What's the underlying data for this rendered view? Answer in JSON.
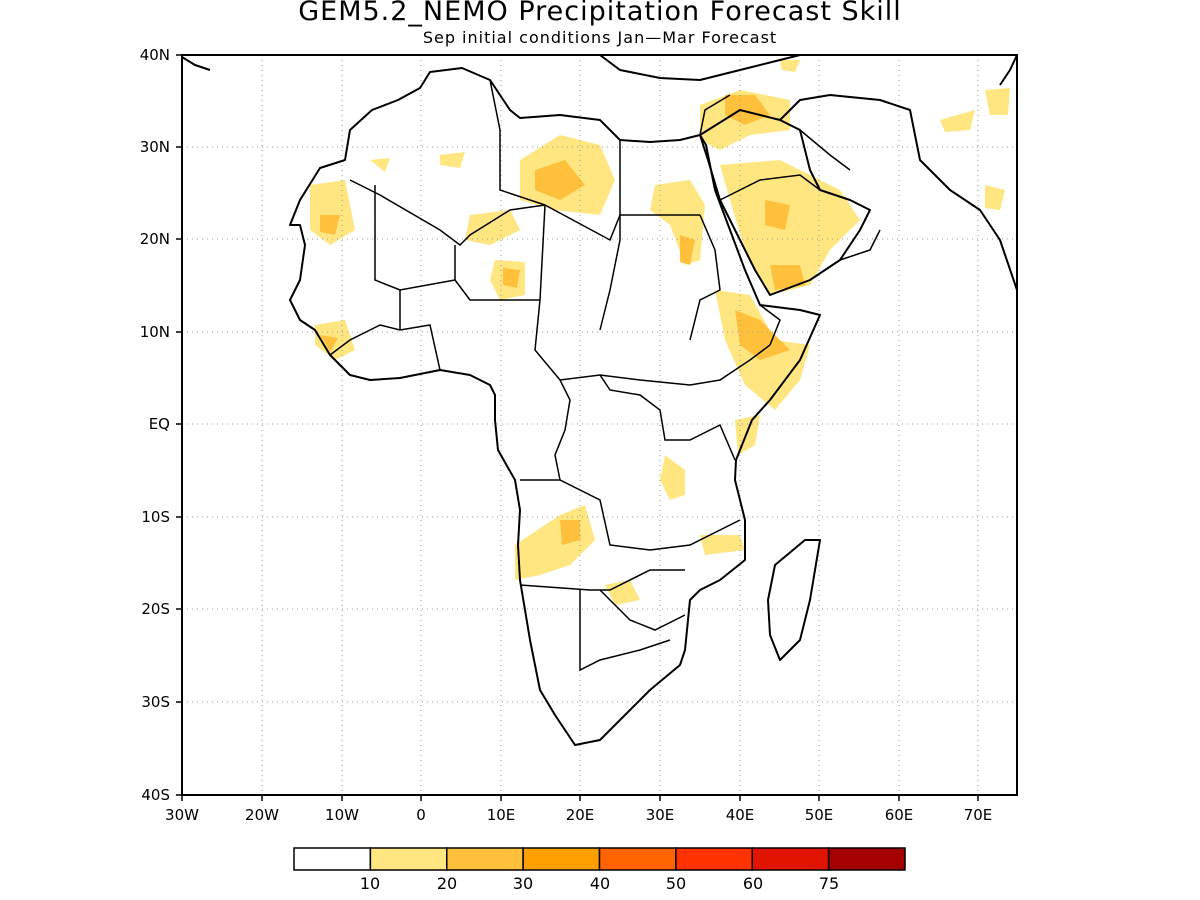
{
  "title": "GEM5.2_NEMO Precipitation Forecast Skill",
  "subtitle": "Sep initial conditions  Jan—Mar Forecast",
  "lat_labels": [
    "40N",
    "30N",
    "20N",
    "10N",
    "EQ",
    "10S",
    "20S",
    "30S",
    "40S"
  ],
  "lon_labels": [
    "30W",
    "20W",
    "10W",
    "0",
    "10E",
    "20E",
    "30E",
    "40E",
    "50E",
    "60E",
    "70E"
  ],
  "colorbar": {
    "colors": [
      "#ffffff",
      "#ffe680",
      "#ffc03c",
      "#ff9f00",
      "#ff6400",
      "#ff3200",
      "#e11400",
      "#a50000"
    ],
    "labels": [
      "10",
      "20",
      "30",
      "40",
      "50",
      "60",
      "75"
    ]
  },
  "colors": {
    "land_outline": "#000000",
    "grid": "#999999"
  }
}
